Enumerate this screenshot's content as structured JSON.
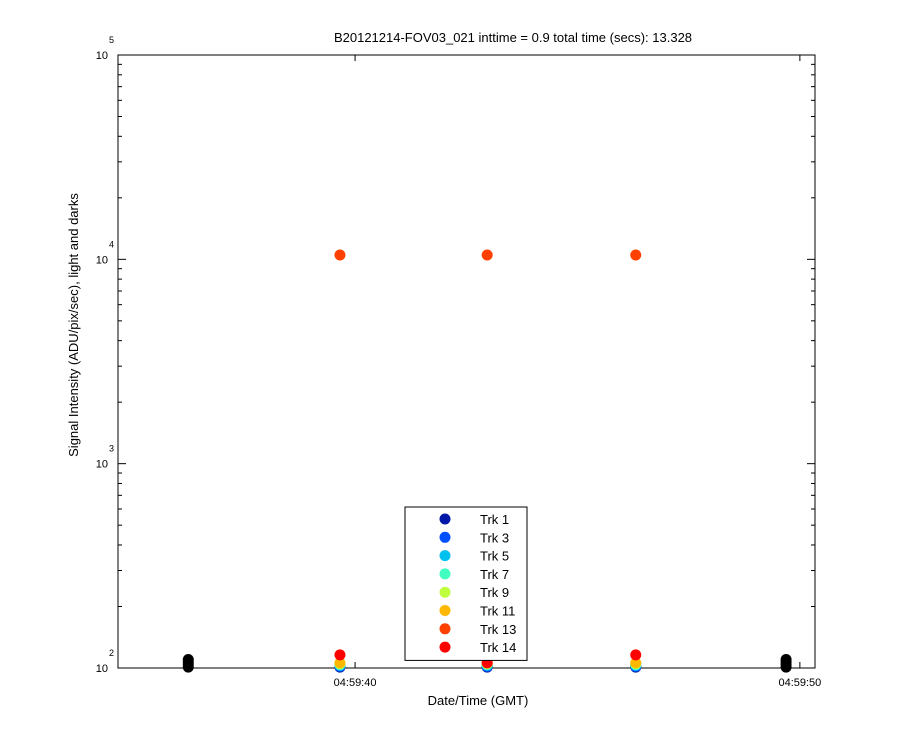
{
  "chart_data": {
    "type": "scatter",
    "title": "B20121214-FOV03_021 inttime = 0.9 total time (secs): 13.328",
    "x_label": "Date/Time (GMT)",
    "y_label": "Signal Intensity (ADU/pix/sec), light and darks",
    "log_y": true,
    "xlim": [
      34.67,
      50.34
    ],
    "xticks": [
      {
        "value": 40,
        "label": "04:59:40"
      },
      {
        "value": 50,
        "label": "04:59:50"
      }
    ],
    "ylim": [
      100,
      100000
    ],
    "yticks": [
      {
        "value": 100,
        "label": "10",
        "exponent": "2"
      },
      {
        "value": 1000,
        "label": "10",
        "exponent": "3"
      },
      {
        "value": 10000,
        "label": "10",
        "exponent": "4"
      },
      {
        "value": 100000,
        "label": "10",
        "exponent": "5"
      }
    ],
    "series": [
      {
        "color": "#000000",
        "x": [
          36.25,
          36.25,
          36.25,
          36.25,
          49.69,
          49.69,
          49.69,
          49.69
        ],
        "values": [
          101,
          104,
          107,
          110,
          101,
          104,
          107,
          110
        ]
      },
      {
        "name": "Trk 1",
        "color": "#0018a8",
        "x": [
          39.66,
          42.97,
          46.31
        ],
        "values": [
          101,
          101,
          101
        ]
      },
      {
        "name": "Trk 3",
        "color": "#0050ff",
        "x": [
          39.66,
          42.97,
          46.31
        ],
        "values": [
          102,
          102,
          102
        ]
      },
      {
        "name": "Trk 5",
        "color": "#00c0f0",
        "x": [
          39.66,
          42.97,
          46.31
        ],
        "values": [
          103,
          103,
          103
        ]
      },
      {
        "name": "Trk 7",
        "color": "#40ffc0",
        "x": [
          39.66,
          42.97,
          46.31
        ],
        "values": [
          104,
          104,
          104
        ]
      },
      {
        "name": "Trk 9",
        "color": "#c0ff40",
        "x": [
          39.66,
          42.97,
          46.31
        ],
        "values": [
          105,
          105,
          105
        ]
      },
      {
        "name": "Trk 11",
        "color": "#ffb800",
        "x": [
          39.66,
          42.97,
          46.31
        ],
        "values": [
          106,
          106,
          106
        ]
      },
      {
        "name": "Trk 13",
        "color": "#ff4000",
        "x": [
          39.66,
          42.97,
          46.31
        ],
        "values": [
          10500,
          10500,
          10500
        ]
      },
      {
        "name": "Trk 14",
        "color": "#ff0000",
        "x": [
          39.66,
          42.97,
          46.31
        ],
        "values": [
          116,
          106,
          116
        ]
      }
    ]
  }
}
